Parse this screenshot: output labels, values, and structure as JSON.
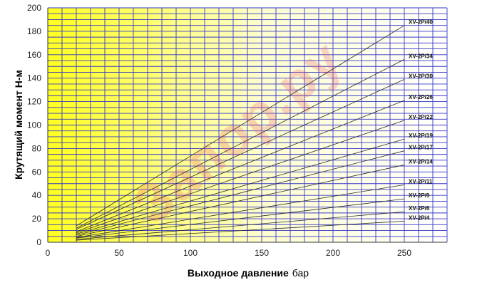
{
  "watermark": "Запор.ру",
  "chart_data": {
    "type": "line",
    "ylabel": "Крутящий момент Н-м",
    "xlabel_bold": "Выходное давление",
    "xlabel_unit": "бар",
    "xlim": [
      0,
      280
    ],
    "ylim": [
      0,
      200
    ],
    "xticks": [
      0,
      50,
      100,
      150,
      200,
      250
    ],
    "yticks": [
      0,
      20,
      40,
      60,
      80,
      100,
      120,
      140,
      160,
      180,
      200
    ],
    "x_grid_step": 10,
    "y_grid_step": 5,
    "grid": true,
    "colors": {
      "grid": "#3737c8",
      "background_left": "#ffff1e",
      "background_right": "#ffffff",
      "line": "#2a2a2a",
      "watermark": "#ec6a6a"
    },
    "series": [
      {
        "name": "XV-2P/40",
        "points": [
          [
            20,
            14
          ],
          [
            250,
            185
          ]
        ]
      },
      {
        "name": "XV-2P/34",
        "points": [
          [
            20,
            12
          ],
          [
            250,
            156
          ]
        ]
      },
      {
        "name": "XV-2P/30",
        "points": [
          [
            20,
            11
          ],
          [
            250,
            139
          ]
        ]
      },
      {
        "name": "XV-2P/26",
        "points": [
          [
            20,
            9
          ],
          [
            250,
            121
          ]
        ]
      },
      {
        "name": "XV-2P/22",
        "points": [
          [
            20,
            8
          ],
          [
            250,
            104
          ]
        ]
      },
      {
        "name": "XV-2P/19",
        "points": [
          [
            20,
            7
          ],
          [
            250,
            88
          ]
        ]
      },
      {
        "name": "XV-2P/17",
        "points": [
          [
            20,
            6
          ],
          [
            250,
            78
          ]
        ]
      },
      {
        "name": "XV-2P/14",
        "points": [
          [
            20,
            5
          ],
          [
            250,
            66
          ]
        ]
      },
      {
        "name": "XV-2P/11",
        "points": [
          [
            20,
            4
          ],
          [
            250,
            49
          ]
        ]
      },
      {
        "name": "XV-2P/9",
        "points": [
          [
            20,
            3.5
          ],
          [
            250,
            37
          ]
        ]
      },
      {
        "name": "XV-2P/6",
        "points": [
          [
            20,
            2.5
          ],
          [
            250,
            26
          ]
        ]
      },
      {
        "name": "XV-2P/4",
        "points": [
          [
            20,
            1.8
          ],
          [
            250,
            18
          ]
        ]
      }
    ]
  }
}
